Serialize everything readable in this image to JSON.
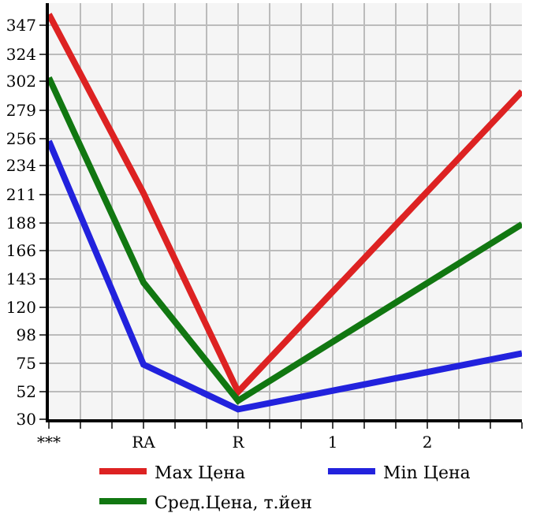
{
  "chart_data": {
    "type": "line",
    "categories": [
      "***",
      "RA",
      "R",
      "1",
      "2",
      null
    ],
    "series": [
      {
        "name": "Max Цена",
        "color": "#dd2222",
        "values": [
          356,
          212,
          52,
          null,
          null,
          294
        ]
      },
      {
        "name": "Min Цена",
        "color": "#2222dd",
        "values": [
          254,
          74,
          38,
          null,
          null,
          83
        ]
      },
      {
        "name": "Сред.Цена, т.йен",
        "color": "#117711",
        "values": [
          305,
          140,
          45,
          null,
          null,
          187
        ]
      }
    ],
    "ylim": [
      30,
      365
    ],
    "yticks": [
      30,
      52,
      75,
      98,
      120,
      143,
      166,
      188,
      211,
      234,
      256,
      279,
      302,
      324,
      347
    ],
    "grid": true,
    "legend": "bottom",
    "marker": "none",
    "line_style": "solid"
  }
}
